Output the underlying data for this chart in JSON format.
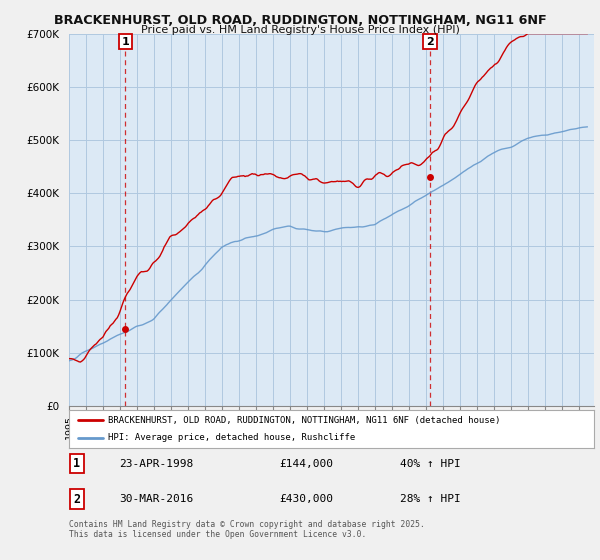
{
  "title_line1": "BRACKENHURST, OLD ROAD, RUDDINGTON, NOTTINGHAM, NG11 6NF",
  "title_line2": "Price paid vs. HM Land Registry's House Price Index (HPI)",
  "bg_color": "#dce9f5",
  "plot_bg_color": "#dce9f5",
  "grid_color": "#b0c8e0",
  "red_color": "#cc0000",
  "blue_color": "#6699cc",
  "ylim": [
    0,
    700000
  ],
  "yticks": [
    0,
    100000,
    200000,
    300000,
    400000,
    500000,
    600000,
    700000
  ],
  "ytick_labels": [
    "£0",
    "£100K",
    "£200K",
    "£300K",
    "£400K",
    "£500K",
    "£600K",
    "£700K"
  ],
  "xmin": 1995,
  "xmax": 2025.9,
  "purchase1_date": 1998.31,
  "purchase1_price": 144000,
  "purchase1_label": "1",
  "purchase2_date": 2016.24,
  "purchase2_price": 430000,
  "purchase2_label": "2",
  "legend_red": "BRACKENHURST, OLD ROAD, RUDDINGTON, NOTTINGHAM, NG11 6NF (detached house)",
  "legend_blue": "HPI: Average price, detached house, Rushcliffe",
  "annotation1_date": "23-APR-1998",
  "annotation1_price": "£144,000",
  "annotation1_hpi": "40% ↑ HPI",
  "annotation2_date": "30-MAR-2016",
  "annotation2_price": "£430,000",
  "annotation2_hpi": "28% ↑ HPI",
  "footer": "Contains HM Land Registry data © Crown copyright and database right 2025.\nThis data is licensed under the Open Government Licence v3.0."
}
